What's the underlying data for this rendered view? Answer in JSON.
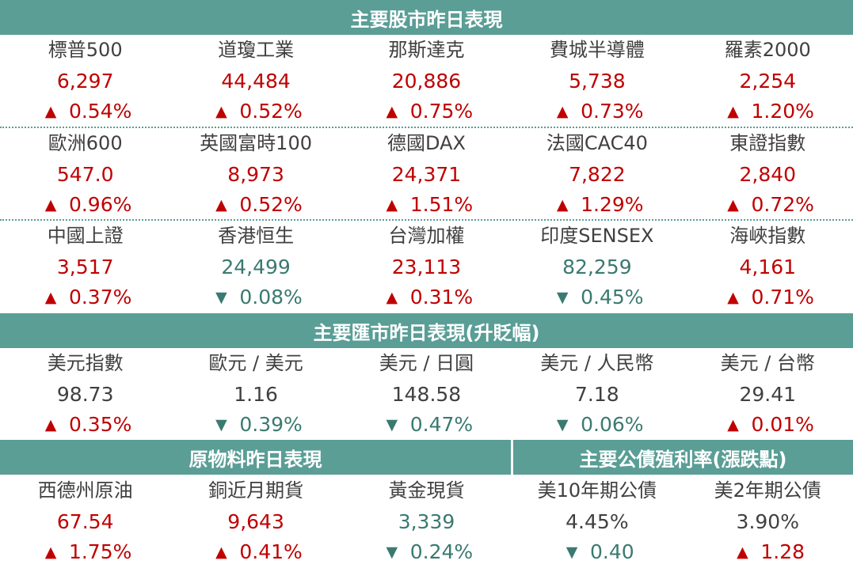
{
  "colors": {
    "header_bg": "#5a9e96",
    "up": "#c00000",
    "down": "#3a7a70",
    "neutral": "#404040"
  },
  "headers": {
    "stocks": "主要股市昨日表現",
    "fx": "主要匯市昨日表現(升貶幅)",
    "commodities": "原物料昨日表現",
    "bonds": "主要公債殖利率(漲跌點)"
  },
  "rows": [
    [
      {
        "name": "標普500",
        "value": "6,297",
        "dir": "up",
        "change": "0.54%"
      },
      {
        "name": "道瓊工業",
        "value": "44,484",
        "dir": "up",
        "change": "0.52%"
      },
      {
        "name": "那斯達克",
        "value": "20,886",
        "dir": "up",
        "change": "0.75%"
      },
      {
        "name": "費城半導體",
        "value": "5,738",
        "dir": "up",
        "change": "0.73%"
      },
      {
        "name": "羅素2000",
        "value": "2,254",
        "dir": "up",
        "change": "1.20%"
      }
    ],
    [
      {
        "name": "歐洲600",
        "value": "547.0",
        "dir": "up",
        "change": "0.96%"
      },
      {
        "name": "英國富時100",
        "value": "8,973",
        "dir": "up",
        "change": "0.52%"
      },
      {
        "name": "德國DAX",
        "value": "24,371",
        "dir": "up",
        "change": "1.51%"
      },
      {
        "name": "法國CAC40",
        "value": "7,822",
        "dir": "up",
        "change": "1.29%"
      },
      {
        "name": "東證指數",
        "value": "2,840",
        "dir": "up",
        "change": "0.72%"
      }
    ],
    [
      {
        "name": "中國上證",
        "value": "3,517",
        "dir": "up",
        "change": "0.37%"
      },
      {
        "name": "香港恒生",
        "value": "24,499",
        "dir": "down",
        "change": "0.08%"
      },
      {
        "name": "台灣加權",
        "value": "23,113",
        "dir": "up",
        "change": "0.31%"
      },
      {
        "name": "印度SENSEX",
        "value": "82,259",
        "dir": "down",
        "change": "0.45%"
      },
      {
        "name": "海峽指數",
        "value": "4,161",
        "dir": "up",
        "change": "0.71%"
      }
    ],
    [
      {
        "name": "美元指數",
        "value": "98.73",
        "dir": "up",
        "change": "0.35%",
        "neutral_value": true
      },
      {
        "name": "歐元 / 美元",
        "value": "1.16",
        "dir": "down",
        "change": "0.39%",
        "neutral_value": true
      },
      {
        "name": "美元 / 日圓",
        "value": "148.58",
        "dir": "down",
        "change": "0.47%",
        "neutral_value": true
      },
      {
        "name": "美元 / 人民幣",
        "value": "7.18",
        "dir": "down",
        "change": "0.06%",
        "neutral_value": true
      },
      {
        "name": "美元 / 台幣",
        "value": "29.41",
        "dir": "up",
        "change": "0.01%",
        "neutral_value": true
      }
    ],
    [
      {
        "name": "西德州原油",
        "value": "67.54",
        "dir": "up",
        "change": "1.75%"
      },
      {
        "name": "銅近月期貨",
        "value": "9,643",
        "dir": "up",
        "change": "0.41%"
      },
      {
        "name": "黃金現貨",
        "value": "3,339",
        "dir": "down",
        "change": "0.24%"
      },
      {
        "name": "美10年期公債",
        "value": "4.45%",
        "dir": "down",
        "change": "0.40",
        "neutral_value": true
      },
      {
        "name": "美2年期公債",
        "value": "3.90%",
        "dir": "up",
        "change": "1.28",
        "neutral_value": true
      }
    ]
  ],
  "arrows": {
    "up": "▲",
    "down": "▼"
  }
}
